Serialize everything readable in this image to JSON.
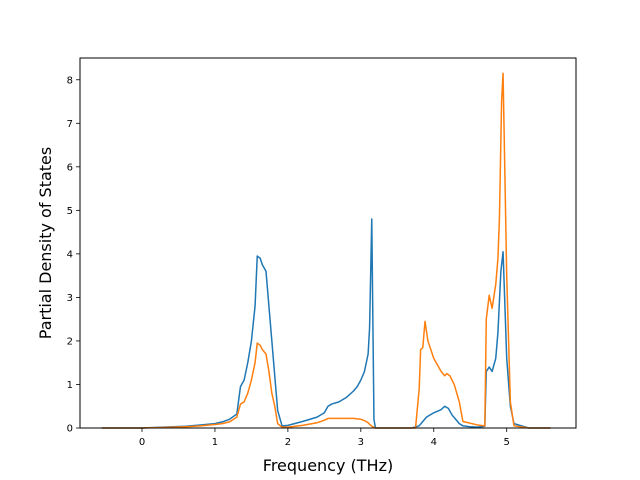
{
  "chart_data": {
    "type": "line",
    "title": "",
    "xlabel": "Frequency (THz)",
    "ylabel": "Partial Density of States",
    "xlim": [
      -0.85,
      5.95
    ],
    "ylim": [
      0,
      8.5
    ],
    "xticks": [
      0,
      1,
      2,
      3,
      4,
      5
    ],
    "yticks": [
      0,
      1,
      2,
      3,
      4,
      5,
      6,
      7,
      8
    ],
    "grid": false,
    "legend": "none",
    "series": [
      {
        "color": "#1f77b4",
        "x": [
          -0.55,
          0.0,
          0.3,
          0.6,
          0.8,
          1.0,
          1.1,
          1.2,
          1.3,
          1.35,
          1.4,
          1.45,
          1.5,
          1.55,
          1.58,
          1.62,
          1.65,
          1.7,
          1.74,
          1.78,
          1.82,
          1.86,
          1.92,
          2.0,
          2.2,
          2.4,
          2.5,
          2.55,
          2.6,
          2.7,
          2.8,
          2.9,
          2.95,
          3.0,
          3.05,
          3.1,
          3.12,
          3.15,
          3.18,
          3.2,
          3.3,
          3.7,
          3.8,
          3.85,
          3.9,
          4.0,
          4.1,
          4.15,
          4.2,
          4.25,
          4.3,
          4.35,
          4.4,
          4.5,
          4.6,
          4.7,
          4.72,
          4.76,
          4.8,
          4.85,
          4.88,
          4.92,
          4.95,
          5.0,
          5.05,
          5.1,
          5.3,
          5.6
        ],
        "y": [
          0,
          0,
          0.02,
          0.04,
          0.07,
          0.1,
          0.14,
          0.2,
          0.32,
          0.95,
          1.1,
          1.5,
          2.0,
          2.8,
          3.95,
          3.9,
          3.75,
          3.6,
          2.8,
          2.0,
          1.2,
          0.4,
          0.05,
          0.06,
          0.15,
          0.25,
          0.35,
          0.5,
          0.55,
          0.6,
          0.7,
          0.85,
          0.95,
          1.1,
          1.3,
          1.7,
          2.3,
          4.8,
          0.2,
          0,
          0,
          0,
          0.05,
          0.15,
          0.25,
          0.35,
          0.42,
          0.5,
          0.45,
          0.3,
          0.2,
          0.1,
          0.05,
          0.03,
          0.02,
          0.04,
          1.3,
          1.4,
          1.3,
          1.6,
          2.2,
          3.6,
          4.05,
          1.6,
          0.5,
          0.1,
          0,
          0
        ]
      },
      {
        "color": "#ff7f0e",
        "x": [
          -0.55,
          0.0,
          0.3,
          0.6,
          0.8,
          1.0,
          1.1,
          1.2,
          1.3,
          1.35,
          1.4,
          1.45,
          1.5,
          1.55,
          1.58,
          1.62,
          1.65,
          1.7,
          1.74,
          1.78,
          1.82,
          1.86,
          1.92,
          2.0,
          2.2,
          2.4,
          2.5,
          2.55,
          2.6,
          2.7,
          2.8,
          2.9,
          2.95,
          3.0,
          3.05,
          3.1,
          3.15,
          3.2,
          3.3,
          3.5,
          3.75,
          3.8,
          3.82,
          3.85,
          3.88,
          3.92,
          4.0,
          4.05,
          4.1,
          4.15,
          4.18,
          4.22,
          4.28,
          4.35,
          4.4,
          4.6,
          4.7,
          4.72,
          4.76,
          4.8,
          4.85,
          4.88,
          4.9,
          4.93,
          4.95,
          5.0,
          5.05,
          5.1,
          5.3,
          5.6
        ],
        "y": [
          0,
          0,
          0.01,
          0.03,
          0.05,
          0.08,
          0.1,
          0.14,
          0.25,
          0.55,
          0.6,
          0.8,
          1.1,
          1.5,
          1.95,
          1.9,
          1.8,
          1.7,
          1.3,
          0.8,
          0.5,
          0.1,
          0.02,
          0.02,
          0.06,
          0.12,
          0.18,
          0.22,
          0.22,
          0.22,
          0.22,
          0.22,
          0.21,
          0.2,
          0.17,
          0.12,
          0.04,
          0,
          0,
          0,
          0,
          0.9,
          1.8,
          1.85,
          2.45,
          2.0,
          1.6,
          1.45,
          1.3,
          1.2,
          1.25,
          1.2,
          1.0,
          0.6,
          0.15,
          0.07,
          0.05,
          2.5,
          3.05,
          2.75,
          3.3,
          3.9,
          4.8,
          7.5,
          8.15,
          3.5,
          0.6,
          0.05,
          0,
          0
        ]
      }
    ]
  }
}
